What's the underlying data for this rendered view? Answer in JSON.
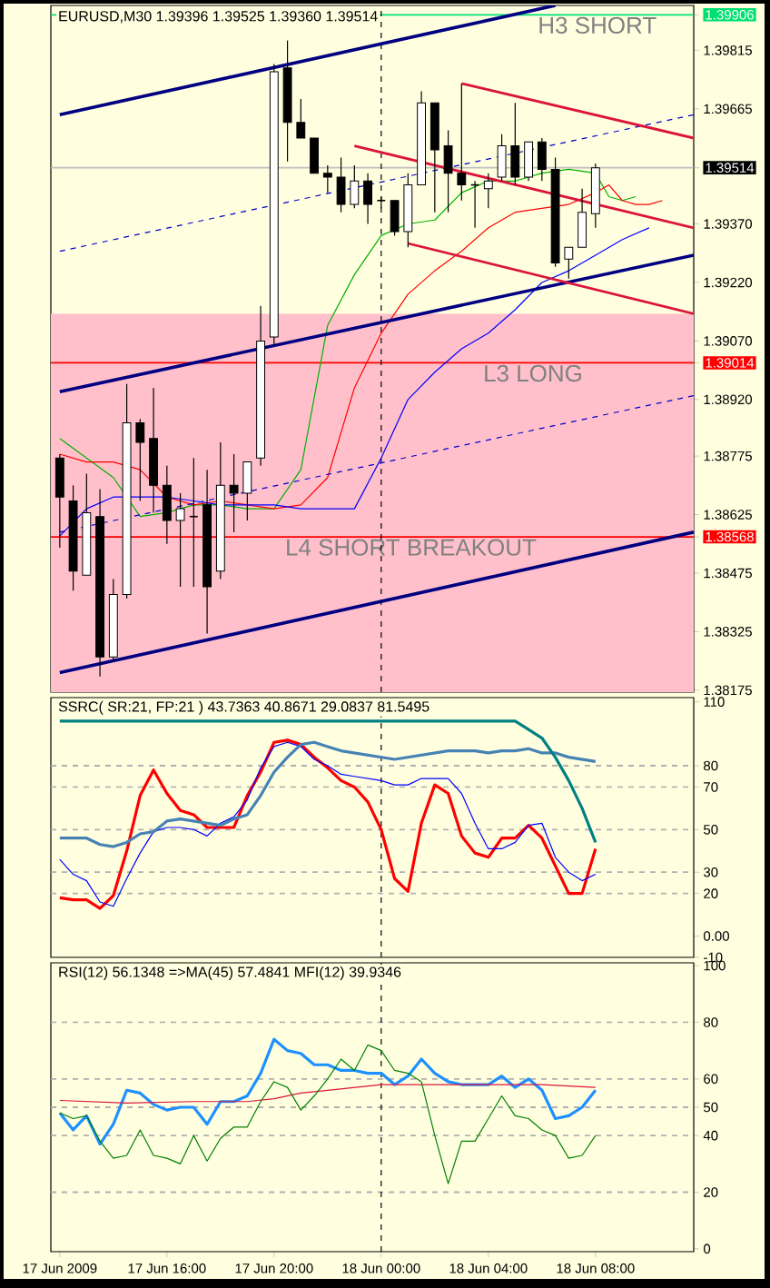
{
  "chart_data": [
    {
      "type": "candlestick",
      "title": "EURUSD,M30 1.39396 1.39525 1.39360 1.39514",
      "x": [
        "2009-06-17T12:00",
        "2009-06-17T12:30",
        "2009-06-17T13:00",
        "2009-06-17T13:30",
        "2009-06-17T14:00",
        "2009-06-17T14:30",
        "2009-06-17T15:00",
        "2009-06-17T15:30",
        "2009-06-17T16:00",
        "2009-06-17T16:30",
        "2009-06-17T17:00",
        "2009-06-17T17:30",
        "2009-06-17T18:00",
        "2009-06-17T18:30",
        "2009-06-17T19:00",
        "2009-06-17T19:30",
        "2009-06-17T20:00",
        "2009-06-17T20:30",
        "2009-06-17T21:00",
        "2009-06-17T21:30",
        "2009-06-17T22:00",
        "2009-06-17T22:30",
        "2009-06-17T23:00",
        "2009-06-17T23:30",
        "2009-06-18T00:00",
        "2009-06-18T00:30",
        "2009-06-18T01:00",
        "2009-06-18T01:30",
        "2009-06-18T02:00",
        "2009-06-18T02:30",
        "2009-06-18T03:00",
        "2009-06-18T03:30",
        "2009-06-18T04:00",
        "2009-06-18T04:30",
        "2009-06-18T05:00",
        "2009-06-18T05:30",
        "2009-06-18T06:00",
        "2009-06-18T06:30",
        "2009-06-18T07:00",
        "2009-06-18T07:30",
        "2009-06-18T08:00"
      ],
      "ohlc": [
        [
          1.3877,
          1.3878,
          1.3854,
          1.3867
        ],
        [
          1.3866,
          1.387,
          1.3843,
          1.3848
        ],
        [
          1.3847,
          1.3873,
          1.3847,
          1.3863
        ],
        [
          1.3862,
          1.3869,
          1.3821,
          1.3826
        ],
        [
          1.3826,
          1.3846,
          1.3825,
          1.3842
        ],
        [
          1.3842,
          1.3896,
          1.3841,
          1.3886
        ],
        [
          1.3886,
          1.3887,
          1.3866,
          1.3881
        ],
        [
          1.3882,
          1.3895,
          1.3863,
          1.387
        ],
        [
          1.387,
          1.3875,
          1.3855,
          1.3861
        ],
        [
          1.3861,
          1.3868,
          1.3844,
          1.3864
        ],
        [
          1.3862,
          1.3877,
          1.3844,
          1.3862
        ],
        [
          1.3865,
          1.3874,
          1.3832,
          1.3844
        ],
        [
          1.3848,
          1.3881,
          1.3846,
          1.387
        ],
        [
          1.387,
          1.3878,
          1.3858,
          1.3868
        ],
        [
          1.3868,
          1.3876,
          1.3861,
          1.3876
        ],
        [
          1.3877,
          1.3916,
          1.3875,
          1.3907
        ],
        [
          1.3908,
          1.3978,
          1.3906,
          1.3976
        ],
        [
          1.3977,
          1.3984,
          1.3953,
          1.3963
        ],
        [
          1.3963,
          1.3969,
          1.3959,
          1.3959
        ],
        [
          1.3959,
          1.3959,
          1.395,
          1.395
        ],
        [
          1.395,
          1.3952,
          1.3945,
          1.3949
        ],
        [
          1.3949,
          1.3954,
          1.394,
          1.3942
        ],
        [
          1.3942,
          1.3952,
          1.3941,
          1.3948
        ],
        [
          1.3948,
          1.395,
          1.3937,
          1.3942
        ],
        [
          1.3943,
          1.3944,
          1.3941,
          1.3943
        ],
        [
          1.3943,
          1.3943,
          1.3934,
          1.3935
        ],
        [
          1.3935,
          1.395,
          1.3931,
          1.3947
        ],
        [
          1.3947,
          1.3971,
          1.3947,
          1.3968
        ],
        [
          1.3968,
          1.3968,
          1.394,
          1.3956
        ],
        [
          1.3957,
          1.3961,
          1.394,
          1.395
        ],
        [
          1.395,
          1.3973,
          1.3943,
          1.3947
        ],
        [
          1.3947,
          1.3948,
          1.3936,
          1.3947
        ],
        [
          1.3946,
          1.395,
          1.3941,
          1.3948
        ],
        [
          1.3949,
          1.396,
          1.3948,
          1.3957
        ],
        [
          1.3957,
          1.3968,
          1.3947,
          1.3949
        ],
        [
          1.3949,
          1.3958,
          1.3948,
          1.3958
        ],
        [
          1.3958,
          1.3959,
          1.3948,
          1.3951
        ],
        [
          1.3951,
          1.3954,
          1.3926,
          1.3927
        ],
        [
          1.3928,
          1.3931,
          1.3923,
          1.3931
        ],
        [
          1.3931,
          1.3946,
          1.3931,
          1.394
        ],
        [
          1.39396,
          1.39525,
          1.3936,
          1.39514
        ]
      ],
      "xlim": [
        "2009-06-17T11:40",
        "2009-06-18T11:40"
      ],
      "ylim": [
        1.3817,
        1.3993
      ],
      "yticks": [
        1.39906,
        1.39815,
        1.39665,
        1.39514,
        {
          "value": 1.3937,
          "label": "1.39370"
        },
        {
          "value": 1.3922,
          "label": "1.39220"
        },
        {
          "value": 1.3907,
          "label": "1.39070"
        },
        1.39014,
        {
          "value": 1.3892,
          "label": "1.38920"
        },
        1.38775,
        1.38625,
        1.38568,
        1.38475,
        1.38325,
        1.38175
      ],
      "tick_labels": "y",
      "series": [
        {
          "type": "line",
          "color": "#00b000",
          "x": [
            "2009-06-17T12:00",
            "2009-06-17T13:00",
            "2009-06-17T14:00",
            "2009-06-17T15:00",
            "2009-06-17T16:00",
            "2009-06-17T17:00",
            "2009-06-17T18:00",
            "2009-06-17T19:00",
            "2009-06-17T20:00",
            "2009-06-17T21:00",
            "2009-06-17T22:00",
            "2009-06-17T23:00",
            "2009-06-18T00:00",
            "2009-06-18T01:00",
            "2009-06-18T02:00",
            "2009-06-18T03:00",
            "2009-06-18T04:00",
            "2009-06-18T05:00",
            "2009-06-18T06:00",
            "2009-06-18T07:00",
            "2009-06-18T08:00",
            "2009-06-18T08:30",
            "2009-06-18T09:00",
            "2009-06-18T09:30"
          ],
          "values": [
            1.3882,
            1.3877,
            1.3872,
            1.3862,
            1.3863,
            1.3865,
            1.3865,
            1.3864,
            1.3864,
            1.3874,
            1.3911,
            1.3924,
            1.3934,
            1.3937,
            1.3938,
            1.3945,
            1.3948,
            1.3948,
            1.395,
            1.3951,
            1.395,
            1.3944,
            1.3943,
            1.3944
          ]
        },
        {
          "type": "line",
          "color": "#ff0000",
          "x": [
            "2009-06-17T12:00",
            "2009-06-17T13:00",
            "2009-06-17T14:00",
            "2009-06-17T15:00",
            "2009-06-17T16:00",
            "2009-06-17T17:00",
            "2009-06-17T18:00",
            "2009-06-17T19:00",
            "2009-06-17T20:00",
            "2009-06-17T21:00",
            "2009-06-17T22:00",
            "2009-06-17T23:00",
            "2009-06-18T00:00",
            "2009-06-18T01:00",
            "2009-06-18T02:00",
            "2009-06-18T03:00",
            "2009-06-18T04:00",
            "2009-06-18T05:00",
            "2009-06-18T06:00",
            "2009-06-18T07:00",
            "2009-06-18T08:00",
            "2009-06-18T08:30",
            "2009-06-18T09:00",
            "2009-06-18T09:30",
            "2009-06-18T10:00",
            "2009-06-18T10:30"
          ],
          "values": [
            1.3878,
            1.3876,
            1.3876,
            1.3874,
            1.3867,
            1.3865,
            1.3866,
            1.3865,
            1.3864,
            1.3865,
            1.3872,
            1.3895,
            1.3909,
            1.3919,
            1.3925,
            1.393,
            1.3936,
            1.394,
            1.3941,
            1.3942,
            1.3945,
            1.3947,
            1.3943,
            1.3942,
            1.3942,
            1.3943
          ]
        },
        {
          "type": "line",
          "color": "#0000ff",
          "x": [
            "2009-06-17T12:00",
            "2009-06-17T13:00",
            "2009-06-17T14:00",
            "2009-06-17T15:00",
            "2009-06-17T16:00",
            "2009-06-17T17:00",
            "2009-06-17T18:00",
            "2009-06-17T19:00",
            "2009-06-17T20:00",
            "2009-06-17T21:00",
            "2009-06-17T22:00",
            "2009-06-17T23:00",
            "2009-06-18T00:00",
            "2009-06-18T01:00",
            "2009-06-18T02:00",
            "2009-06-18T03:00",
            "2009-06-18T04:00",
            "2009-06-18T05:00",
            "2009-06-18T06:00",
            "2009-06-18T07:00",
            "2009-06-18T08:00",
            "2009-06-18T09:00",
            "2009-06-18T10:00"
          ],
          "values": [
            1.3857,
            1.3864,
            1.3867,
            1.3867,
            1.3867,
            1.3866,
            1.3865,
            1.3865,
            1.3865,
            1.3864,
            1.3864,
            1.3864,
            1.3877,
            1.3892,
            1.3899,
            1.3905,
            1.3909,
            1.3915,
            1.3922,
            1.3925,
            1.3929,
            1.3933,
            1.3936
          ]
        },
        {
          "type": "line",
          "color": "#000080",
          "x": [
            "2009-06-17T12:00",
            "2009-06-18T06:30"
          ],
          "values": [
            1.3965,
            1.3993
          ]
        },
        {
          "type": "line",
          "color": "#0000cc",
          "line_style": "dashed",
          "x": [
            "2009-06-17T12:00",
            "2009-06-18T11:40"
          ],
          "values": [
            1.393,
            1.3965
          ]
        },
        {
          "type": "line",
          "color": "#000080",
          "x": [
            "2009-06-17T12:00",
            "2009-06-18T11:40"
          ],
          "values": [
            1.3894,
            1.3929
          ]
        },
        {
          "type": "line",
          "color": "#0000cc",
          "line_style": "dashed",
          "x": [
            "2009-06-17T12:00",
            "2009-06-18T11:40"
          ],
          "values": [
            1.3858,
            1.3893
          ]
        },
        {
          "type": "line",
          "color": "#000080",
          "x": [
            "2009-06-17T12:00",
            "2009-06-18T11:40"
          ],
          "values": [
            1.3822,
            1.3858
          ]
        },
        {
          "type": "line",
          "color": "#dc143c",
          "x": [
            "2009-06-18T03:00",
            "2009-06-18T11:40"
          ],
          "values": [
            1.3973,
            1.3959
          ]
        },
        {
          "type": "line",
          "color": "#dc143c",
          "x": [
            "2009-06-17T23:00",
            "2009-06-18T11:40"
          ],
          "values": [
            1.3957,
            1.3936
          ]
        },
        {
          "type": "line",
          "color": "#dc143c",
          "x": [
            "2009-06-18T01:00",
            "2009-06-18T11:40"
          ],
          "values": [
            1.3932,
            1.3914
          ]
        }
      ],
      "ref_lines": [
        {
          "axis": "y",
          "value": 1.39906,
          "label": "H3 SHORT",
          "color": "#00e070"
        },
        {
          "axis": "y",
          "value": 1.39514,
          "color": "#c0c0c0"
        },
        {
          "axis": "y",
          "value": 1.39014,
          "label": "L3 LONG",
          "color": "#ff0000"
        },
        {
          "axis": "y",
          "value": 1.38568,
          "label": "L4 SHORT BREAKOUT",
          "color": "#ff0000"
        },
        {
          "axis": "x",
          "value": "2009-06-18T00:00",
          "color": "#000000",
          "line_style": "dashed"
        }
      ],
      "bands": [
        {
          "axis": "y",
          "from": 1.3817,
          "to": 1.3914,
          "color": "#ffc0cb"
        }
      ]
    },
    {
      "type": "line",
      "title": "SSRC( SR:21, FP:21 ) 43.7363 40.8671 29.0837 81.5495",
      "x": [
        "2009-06-17T12:00",
        "2009-06-17T12:30",
        "2009-06-17T13:00",
        "2009-06-17T13:30",
        "2009-06-17T14:00",
        "2009-06-17T14:30",
        "2009-06-17T15:00",
        "2009-06-17T15:30",
        "2009-06-17T16:00",
        "2009-06-17T16:30",
        "2009-06-17T17:00",
        "2009-06-17T17:30",
        "2009-06-17T18:00",
        "2009-06-17T18:30",
        "2009-06-17T19:00",
        "2009-06-17T19:30",
        "2009-06-17T20:00",
        "2009-06-17T20:30",
        "2009-06-17T21:00",
        "2009-06-17T21:30",
        "2009-06-17T22:00",
        "2009-06-17T22:30",
        "2009-06-17T23:00",
        "2009-06-17T23:30",
        "2009-06-18T00:00",
        "2009-06-18T00:30",
        "2009-06-18T01:00",
        "2009-06-18T01:30",
        "2009-06-18T02:00",
        "2009-06-18T02:30",
        "2009-06-18T03:00",
        "2009-06-18T03:30",
        "2009-06-18T04:00",
        "2009-06-18T04:30",
        "2009-06-18T05:00",
        "2009-06-18T05:30",
        "2009-06-18T06:00",
        "2009-06-18T06:30",
        "2009-06-18T07:00",
        "2009-06-18T07:30",
        "2009-06-18T08:00"
      ],
      "xlim": [
        "2009-06-17T11:40",
        "2009-06-18T11:40"
      ],
      "ylim": [
        -10,
        112
      ],
      "yticks": [
        110,
        80,
        70,
        50,
        30,
        20,
        {
          "value": 0,
          "label": "0.00"
        },
        -10
      ],
      "tick_labels": "y",
      "series": [
        {
          "color": "#ff0000",
          "values": [
            18,
            17,
            17,
            13,
            19,
            40,
            66,
            78,
            67,
            59,
            57,
            51,
            51,
            51,
            66,
            77,
            91,
            92,
            90,
            84,
            79,
            73,
            70,
            63,
            50,
            27,
            21,
            53,
            71,
            67,
            47,
            39,
            37,
            46,
            46,
            52,
            46,
            33,
            20,
            20,
            41
          ]
        },
        {
          "color": "#0000ff",
          "values": [
            36,
            29,
            26,
            16,
            14,
            27,
            39,
            49,
            51,
            51,
            50,
            47,
            53,
            56,
            64,
            79,
            89,
            91,
            89,
            83,
            80,
            76,
            75,
            74,
            73,
            71,
            71,
            74,
            74,
            74,
            67,
            53,
            41,
            41,
            44,
            52,
            53,
            37,
            30,
            26,
            29
          ]
        },
        {
          "color": "#4682b4",
          "values": [
            46,
            46,
            46,
            43,
            42,
            44,
            48,
            49,
            54,
            55,
            54,
            53,
            52,
            55,
            57,
            66,
            77,
            84,
            90,
            91,
            89,
            87,
            86,
            85,
            84,
            83,
            84,
            85,
            86,
            87,
            87,
            87,
            86,
            87,
            87,
            88,
            86,
            86,
            84,
            83,
            82
          ]
        },
        {
          "color": "#008080",
          "values": [
            101,
            101,
            101,
            101,
            101,
            101,
            101,
            101,
            101,
            101,
            101,
            101,
            101,
            101,
            101,
            101,
            101,
            101,
            101,
            101,
            101,
            101,
            101,
            101,
            101,
            101,
            101,
            101,
            101,
            101,
            101,
            101,
            101,
            101,
            101,
            97,
            93,
            84,
            73,
            60,
            44
          ]
        }
      ],
      "ref_lines": [
        {
          "axis": "y",
          "value": 80,
          "color": "#b0b0b0",
          "line_style": "dashed"
        },
        {
          "axis": "y",
          "value": 70,
          "color": "#b0b0b0",
          "line_style": "dashed"
        },
        {
          "axis": "y",
          "value": 50,
          "color": "#b0b0b0",
          "line_style": "dashed"
        },
        {
          "axis": "y",
          "value": 30,
          "color": "#b0b0b0",
          "line_style": "dashed"
        },
        {
          "axis": "y",
          "value": 20,
          "color": "#b0b0b0",
          "line_style": "dashed"
        },
        {
          "axis": "x",
          "value": "2009-06-18T00:00",
          "color": "#000000",
          "line_style": "dashed"
        }
      ]
    },
    {
      "type": "line",
      "title": "RSI(12) 56.1348 =>MA(45) 57.4841 MFI(12) 39.9346",
      "x": [
        "2009-06-17T12:00",
        "2009-06-17T12:30",
        "2009-06-17T13:00",
        "2009-06-17T13:30",
        "2009-06-17T14:00",
        "2009-06-17T14:30",
        "2009-06-17T15:00",
        "2009-06-17T15:30",
        "2009-06-17T16:00",
        "2009-06-17T16:30",
        "2009-06-17T17:00",
        "2009-06-17T17:30",
        "2009-06-17T18:00",
        "2009-06-17T18:30",
        "2009-06-17T19:00",
        "2009-06-17T19:30",
        "2009-06-17T20:00",
        "2009-06-17T20:30",
        "2009-06-17T21:00",
        "2009-06-17T21:30",
        "2009-06-17T22:00",
        "2009-06-17T22:30",
        "2009-06-17T23:00",
        "2009-06-17T23:30",
        "2009-06-18T00:00",
        "2009-06-18T00:30",
        "2009-06-18T01:00",
        "2009-06-18T01:30",
        "2009-06-18T02:00",
        "2009-06-18T02:30",
        "2009-06-18T03:00",
        "2009-06-18T03:30",
        "2009-06-18T04:00",
        "2009-06-18T04:30",
        "2009-06-18T05:00",
        "2009-06-18T05:30",
        "2009-06-18T06:00",
        "2009-06-18T06:30",
        "2009-06-18T07:00",
        "2009-06-18T07:30",
        "2009-06-18T08:00"
      ],
      "xlim": [
        "2009-06-17T11:40",
        "2009-06-18T11:40"
      ],
      "ylim": [
        -1,
        101
      ],
      "yticks": [
        100,
        80,
        60,
        50,
        40,
        20,
        0
      ],
      "xticks": [
        {
          "value": "2009-06-17T12:00",
          "label": "17 Jun 2009"
        },
        {
          "value": "2009-06-17T16:00",
          "label": "17 Jun 16:00"
        },
        {
          "value": "2009-06-17T20:00",
          "label": "17 Jun 20:00"
        },
        {
          "value": "2009-06-18T00:00",
          "label": "18 Jun 00:00"
        },
        {
          "value": "2009-06-18T04:00",
          "label": "18 Jun 04:00"
        },
        {
          "value": "2009-06-18T08:00",
          "label": "18 Jun 08:00"
        }
      ],
      "series": [
        {
          "color": "#1e90ff",
          "values": [
            48,
            42,
            47,
            37,
            44,
            56,
            55,
            51,
            49,
            50,
            50,
            44,
            52,
            52,
            54,
            62,
            74,
            70,
            69,
            65,
            65,
            63,
            63,
            62,
            62,
            58,
            61,
            67,
            62,
            59,
            58,
            58,
            58,
            61,
            57,
            60,
            56,
            46,
            47,
            50,
            56
          ]
        },
        {
          "color": "#dc143c",
          "x": [
            "2009-06-17T12:00",
            "2009-06-17T14:30",
            "2009-06-17T17:00",
            "2009-06-17T19:00",
            "2009-06-17T20:00",
            "2009-06-17T21:00",
            "2009-06-17T22:00",
            "2009-06-18T00:00",
            "2009-06-18T02:00",
            "2009-06-18T04:00",
            "2009-06-18T06:00",
            "2009-06-18T08:00"
          ],
          "values": [
            52.4,
            51.5,
            52,
            52,
            53,
            55,
            56,
            58,
            58,
            58,
            58,
            57
          ]
        },
        {
          "color": "#008000",
          "values": [
            48,
            46,
            47,
            38,
            32,
            33,
            42,
            33,
            32,
            30,
            40,
            31,
            39,
            43,
            43,
            52,
            59,
            57,
            49,
            54,
            60,
            67,
            63,
            72,
            70,
            63,
            62,
            59,
            40,
            23,
            38,
            38,
            46,
            54,
            47,
            46,
            42,
            40,
            32,
            33,
            40
          ]
        }
      ],
      "ref_lines": [
        {
          "axis": "y",
          "value": 80,
          "color": "#b0b0b0",
          "line_style": "dashed"
        },
        {
          "axis": "y",
          "value": 60,
          "color": "#b0b0b0",
          "line_style": "dashed"
        },
        {
          "axis": "y",
          "value": 50,
          "color": "#b0b0b0",
          "line_style": "dashed"
        },
        {
          "axis": "y",
          "value": 40,
          "color": "#b0b0b0",
          "line_style": "dashed"
        },
        {
          "axis": "y",
          "value": 20,
          "color": "#b0b0b0",
          "line_style": "dashed"
        },
        {
          "axis": "x",
          "value": "2009-06-18T00:00",
          "color": "#000000",
          "line_style": "dashed"
        }
      ]
    }
  ]
}
